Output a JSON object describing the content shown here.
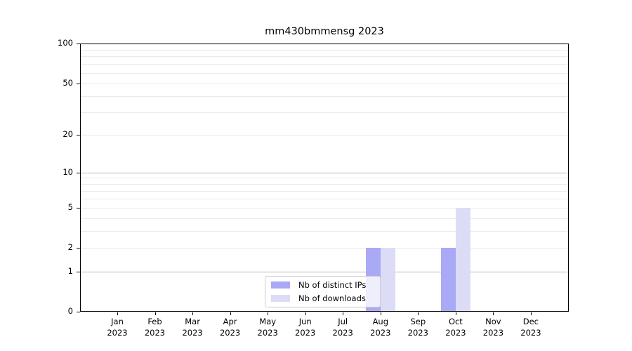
{
  "chart_data": {
    "type": "bar",
    "title": "mm430bmmensg 2023",
    "y_scale": "log1p",
    "ylim": [
      0,
      100
    ],
    "grid": true,
    "legend_position": "lower center inside",
    "categories": [
      "Jan 2023",
      "Feb 2023",
      "Mar 2023",
      "Apr 2023",
      "May 2023",
      "Jun 2023",
      "Jul 2023",
      "Aug 2023",
      "Sep 2023",
      "Oct 2023",
      "Nov 2023",
      "Dec 2023"
    ],
    "series": [
      {
        "name": "Nb of distinct IPs",
        "color": "#a9a9f5",
        "values": [
          0,
          0,
          0,
          0,
          0,
          0,
          0,
          2,
          0,
          2,
          0,
          0
        ]
      },
      {
        "name": "Nb of downloads",
        "color": "#dcdcf7",
        "values": [
          0,
          0,
          0,
          0,
          0,
          0,
          0,
          2,
          0,
          5,
          0,
          0
        ]
      }
    ],
    "y_tick_labels": [
      100,
      50,
      20,
      10,
      5,
      2,
      1,
      0
    ],
    "y_major_gridlines": [
      1,
      10,
      100
    ],
    "y_minor_gridlines": [
      2,
      3,
      4,
      5,
      6,
      7,
      8,
      9,
      20,
      30,
      40,
      50,
      60,
      70,
      80,
      90
    ],
    "colors": {
      "axis": "#000000",
      "major_grid": "#b8b8b8",
      "minor_grid": "#e9e9e9",
      "background": "#ffffff"
    }
  }
}
